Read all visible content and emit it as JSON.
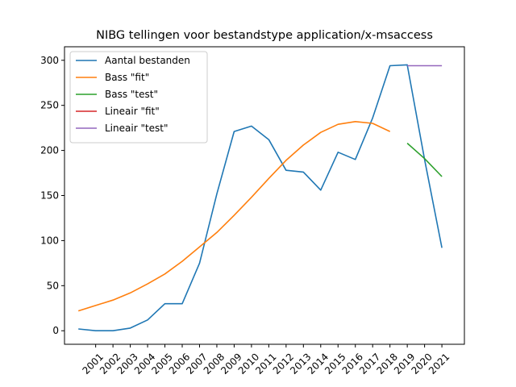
{
  "chart_data": {
    "type": "line",
    "title": "NIBG tellingen voor bestandstype application/x-msaccess",
    "xlabel": "",
    "ylabel": "",
    "ylim": [
      -15,
      315
    ],
    "yticks": [
      0,
      50,
      100,
      150,
      200,
      250,
      300
    ],
    "xticks": [
      2001,
      2002,
      2003,
      2004,
      2005,
      2006,
      2007,
      2008,
      2009,
      2010,
      2011,
      2012,
      2013,
      2014,
      2015,
      2016,
      2017,
      2018,
      2019,
      2020,
      2021
    ],
    "xlim": [
      1999.2,
      2022.3
    ],
    "grid": false,
    "legend_position": "top-left",
    "series": [
      {
        "name": "Aantal bestanden",
        "color": "#1f77b4",
        "x": [
          2000,
          2001,
          2002,
          2003,
          2004,
          2005,
          2006,
          2007,
          2008,
          2009,
          2010,
          2011,
          2012,
          2013,
          2014,
          2015,
          2016,
          2017,
          2018,
          2019,
          2020,
          2021
        ],
        "y": [
          2,
          0,
          0,
          3,
          12,
          30,
          30,
          75,
          152,
          221,
          227,
          212,
          178,
          176,
          156,
          198,
          190,
          236,
          294,
          295,
          190,
          92
        ]
      },
      {
        "name": "Bass \"fit\"",
        "color": "#ff7f0e",
        "x": [
          2000,
          2001,
          2002,
          2003,
          2004,
          2005,
          2006,
          2007,
          2008,
          2009,
          2010,
          2011,
          2012,
          2013,
          2014,
          2015,
          2016,
          2017,
          2018
        ],
        "y": [
          22,
          28,
          34,
          42,
          52,
          63,
          77,
          93,
          109,
          128,
          148,
          169,
          189,
          206,
          220,
          229,
          232,
          230,
          221
        ]
      },
      {
        "name": "Bass \"test\"",
        "color": "#2ca02c",
        "x": [
          2019,
          2020,
          2021
        ],
        "y": [
          208,
          191,
          171
        ]
      },
      {
        "name": "Lineair \"fit\"",
        "color": "#d62728",
        "x": [],
        "y": []
      },
      {
        "name": "Lineair \"test\"",
        "color": "#9467bd",
        "x": [
          2019,
          2020,
          2021
        ],
        "y": [
          294,
          294,
          294
        ]
      }
    ]
  }
}
